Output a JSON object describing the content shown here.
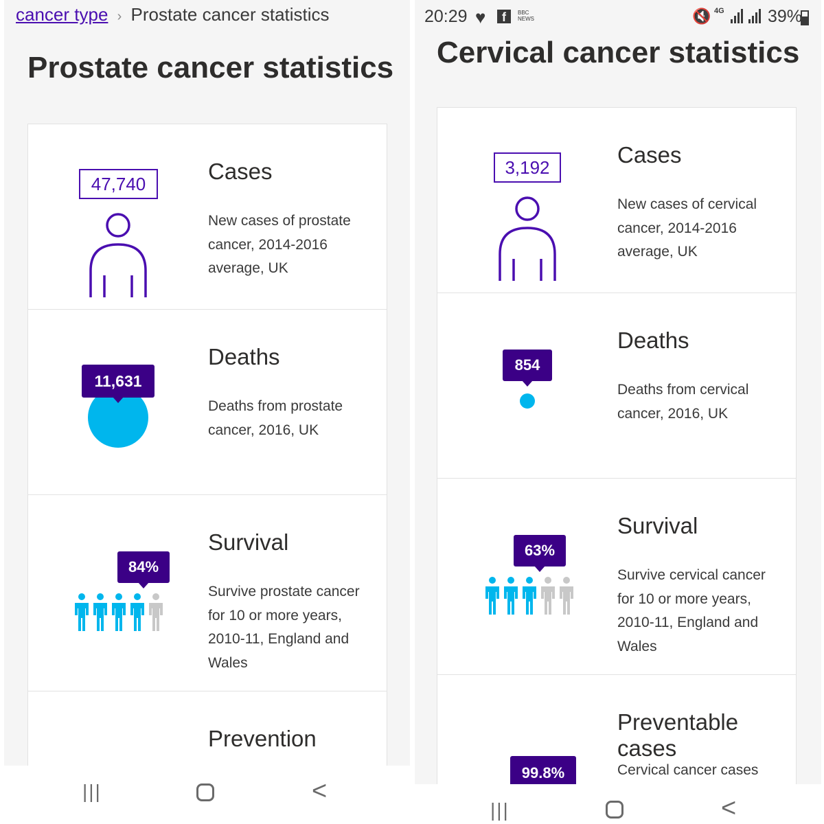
{
  "left_panel": {
    "breadcrumb": {
      "link": "cancer type",
      "separator": "›",
      "current": "Prostate cancer statistics"
    },
    "page_title": "Prostate cancer statistics",
    "cards": {
      "cases": {
        "heading": "Cases",
        "number": "47,740",
        "description": "New cases of prostate cancer, 2014-2016 average, UK"
      },
      "deaths": {
        "heading": "Deaths",
        "number": "11,631",
        "description": "Deaths from prostate cancer, 2016, UK"
      },
      "survival": {
        "heading": "Survival",
        "percent": "84%",
        "description": "Survive prostate cancer for 10 or more years, 2010-11, England and Wales",
        "survival_fraction": 0.84
      },
      "prevention": {
        "heading": "Prevention"
      }
    }
  },
  "right_panel": {
    "status_bar": {
      "time": "20:29",
      "network": "4G",
      "battery": "39%",
      "bbc_label": "BBC NEWS"
    },
    "page_title": "Cervical cancer statistics",
    "cards": {
      "cases": {
        "heading": "Cases",
        "number": "3,192",
        "description": "New cases of cervical cancer, 2014-2016 average, UK"
      },
      "deaths": {
        "heading": "Deaths",
        "number": "854",
        "description": "Deaths from cervical cancer, 2016, UK"
      },
      "survival": {
        "heading": "Survival",
        "percent": "63%",
        "description": "Survive cervical cancer for 10 or more years, 2010-11, England and Wales",
        "survival_fraction": 0.63
      },
      "preventable": {
        "heading": "Preventable cases",
        "percent": "99.8%",
        "description": "Cervical cancer cases"
      }
    }
  },
  "navigation": {
    "recent_label": "|||",
    "back_label": "<"
  },
  "colors": {
    "purple": "#4a0eb0",
    "dark_purple": "#3b0086",
    "cyan": "#00b6ed",
    "grey_figure": "#c8c8c8"
  }
}
